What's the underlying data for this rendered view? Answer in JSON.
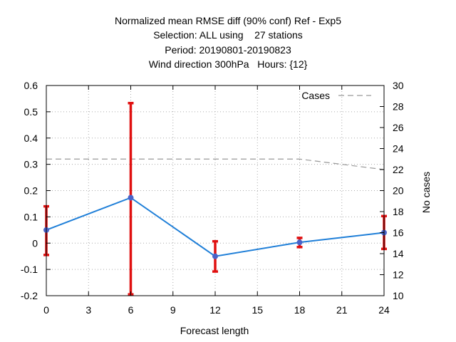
{
  "title_lines": [
    "Normalized mean RMSE diff (90% conf) Ref - Exp5",
    "Selection: ALL using    27 stations",
    "Period: 20190801-20190823",
    "Wind direction 300hPa   Hours: {12}"
  ],
  "chart_data": {
    "type": "line",
    "xlabel": "Forecast length",
    "ylabel": "",
    "y2label": "No cases",
    "xlim": [
      0,
      24
    ],
    "ylim": [
      -0.2,
      0.6
    ],
    "y2lim": [
      10,
      30
    ],
    "xticks": [
      0,
      3,
      6,
      9,
      12,
      15,
      18,
      21,
      24
    ],
    "yticks": [
      -0.2,
      -0.1,
      0,
      0.1,
      0.2,
      0.3,
      0.4,
      0.5,
      0.6
    ],
    "y2ticks": [
      10,
      12,
      14,
      16,
      18,
      20,
      22,
      24,
      26,
      28,
      30
    ],
    "grid": true,
    "legend_position": "top-right",
    "series": [
      {
        "x": [
          0,
          6,
          12,
          18,
          24
        ],
        "values": [
          0.05,
          0.173,
          -0.05,
          0.003,
          0.04
        ],
        "error_low": [
          -0.045,
          -0.195,
          -0.108,
          -0.015,
          -0.022
        ],
        "error_high": [
          0.14,
          0.533,
          0.007,
          0.02,
          0.103
        ],
        "color": "#1f7fd8",
        "errorbar_color": "#e01010"
      },
      {
        "name": "Cases",
        "axis": "y2",
        "style": "dashed",
        "color": "#999999",
        "x": [
          0,
          6,
          12,
          18,
          24
        ],
        "values": [
          23,
          23,
          23,
          23,
          22
        ]
      }
    ]
  }
}
